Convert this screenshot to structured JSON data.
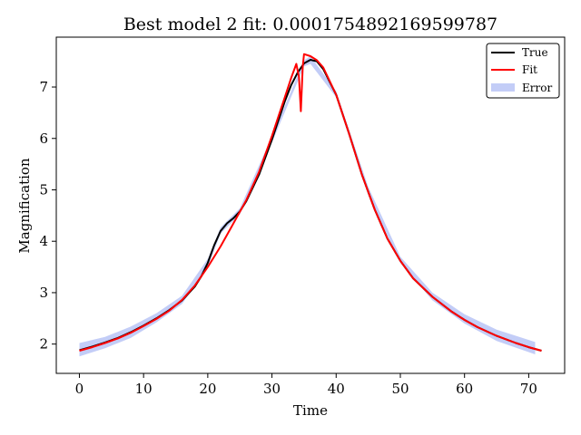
{
  "chart_data": {
    "type": "line",
    "title": "Best model 2 fit: 0.0001754892169599787",
    "xlabel": "Time",
    "ylabel": "Magnification",
    "xlim": [
      -3.6,
      75.6
    ],
    "ylim": [
      1.43,
      7.97
    ],
    "xticks": [
      0,
      10,
      20,
      30,
      40,
      50,
      60,
      70
    ],
    "yticks": [
      2,
      3,
      4,
      5,
      6,
      7
    ],
    "grid": false,
    "legend_position": "top-right",
    "series": [
      {
        "name": "True",
        "color": "#000000",
        "x": [
          0,
          2,
          4,
          6,
          8,
          10,
          12,
          14,
          16,
          18,
          19,
          20,
          21,
          22,
          23,
          24,
          25,
          26,
          28,
          30,
          32,
          33,
          34,
          35,
          36,
          37,
          38,
          40,
          42,
          44,
          46,
          48,
          50,
          52,
          55,
          58,
          60,
          62,
          65,
          68,
          70,
          72
        ],
        "y": [
          1.88,
          1.95,
          2.03,
          2.12,
          2.23,
          2.36,
          2.5,
          2.66,
          2.85,
          3.12,
          3.32,
          3.58,
          3.92,
          4.2,
          4.35,
          4.45,
          4.58,
          4.78,
          5.3,
          5.98,
          6.72,
          7.04,
          7.28,
          7.46,
          7.53,
          7.5,
          7.35,
          6.85,
          6.1,
          5.3,
          4.62,
          4.05,
          3.62,
          3.28,
          2.92,
          2.63,
          2.47,
          2.33,
          2.16,
          2.02,
          1.94,
          1.87
        ]
      },
      {
        "name": "Fit",
        "color": "#ff0000",
        "x": [
          0,
          2,
          4,
          6,
          8,
          10,
          12,
          14,
          16,
          18,
          20,
          22,
          24,
          26,
          28,
          30,
          32,
          33,
          33.8,
          34.2,
          34.5,
          34.8,
          35,
          36,
          37,
          38,
          40,
          42,
          44,
          46,
          48,
          50,
          52,
          55,
          58,
          60,
          62,
          65,
          68,
          70,
          72
        ],
        "y": [
          1.87,
          1.94,
          2.02,
          2.11,
          2.22,
          2.35,
          2.49,
          2.65,
          2.86,
          3.14,
          3.5,
          3.9,
          4.35,
          4.8,
          5.35,
          6.05,
          6.8,
          7.18,
          7.45,
          7.2,
          6.53,
          7.4,
          7.64,
          7.6,
          7.52,
          7.38,
          6.85,
          6.1,
          5.3,
          4.62,
          4.05,
          3.62,
          3.28,
          2.92,
          2.63,
          2.47,
          2.33,
          2.16,
          2.02,
          1.94,
          1.87
        ]
      },
      {
        "name": "Error",
        "color": "#c3cdf7",
        "x": [
          0,
          4,
          8,
          12,
          16,
          20,
          22,
          25,
          30,
          35,
          36,
          40,
          45,
          50,
          55,
          60,
          65,
          71
        ],
        "y_low": [
          1.76,
          1.92,
          2.12,
          2.42,
          2.78,
          3.5,
          4.15,
          4.52,
          5.92,
          7.4,
          7.45,
          6.8,
          4.9,
          3.58,
          2.85,
          2.4,
          2.06,
          1.8
        ],
        "y_high": [
          2.02,
          2.14,
          2.34,
          2.6,
          2.94,
          3.66,
          4.27,
          4.64,
          6.04,
          7.52,
          7.6,
          6.92,
          5.06,
          3.7,
          3.0,
          2.58,
          2.28,
          2.04
        ]
      }
    ]
  }
}
